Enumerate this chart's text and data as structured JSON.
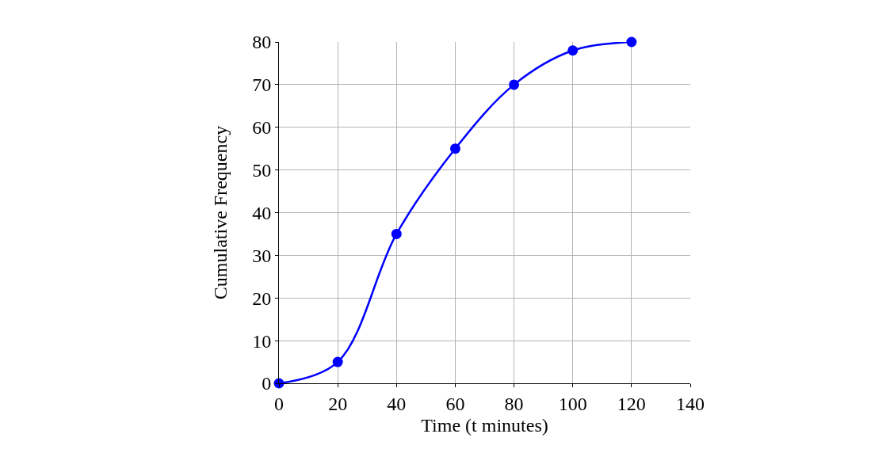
{
  "chart_data": {
    "type": "line",
    "xlabel": "Time (t minutes)",
    "ylabel": "Cumulative Frequency",
    "x": [
      0,
      20,
      40,
      60,
      80,
      100,
      120
    ],
    "series": [
      {
        "color": "#0000ff",
        "values": [
          0,
          5,
          35,
          55,
          70,
          78,
          80
        ]
      }
    ],
    "xlim": [
      0,
      140
    ],
    "xticks": [
      0,
      20,
      40,
      60,
      80,
      100,
      120,
      140
    ],
    "ylim": [
      0,
      80
    ],
    "yticks": [
      0,
      10,
      20,
      30,
      40,
      50,
      60,
      70,
      80
    ],
    "grid": true,
    "marker": "circle",
    "line_style": "solid"
  }
}
